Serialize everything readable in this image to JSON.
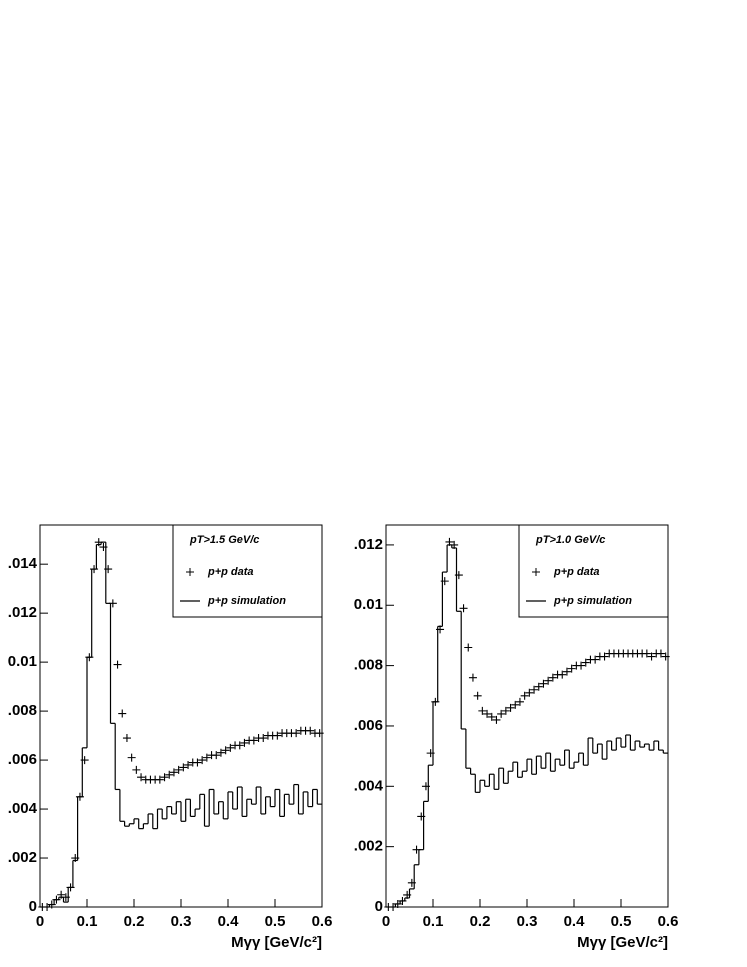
{
  "chart_data": [
    {
      "type": "histogram",
      "legend_title": "pT>1.5 GeV/c",
      "x_label": "Mγγ  [GeV/c²]",
      "bins": [
        0,
        0.01,
        0.02,
        0.03,
        0.04,
        0.05,
        0.06,
        0.07,
        0.08,
        0.09,
        0.1,
        0.11,
        0.12,
        0.13,
        0.14,
        0.15,
        0.16,
        0.17,
        0.18,
        0.19,
        0.2,
        0.21,
        0.22,
        0.23,
        0.24,
        0.25,
        0.26,
        0.27,
        0.28,
        0.29,
        0.3,
        0.31,
        0.32,
        0.33,
        0.34,
        0.35,
        0.36,
        0.37,
        0.38,
        0.39,
        0.4,
        0.41,
        0.42,
        0.43,
        0.44,
        0.45,
        0.46,
        0.47,
        0.48,
        0.49,
        0.5,
        0.51,
        0.52,
        0.53,
        0.54,
        0.55,
        0.56,
        0.57,
        0.58,
        0.59,
        0.6
      ],
      "series": [
        {
          "name": "p+p data",
          "style": "markers",
          "color": "#000000",
          "values": [
            0,
            0,
            0.0001,
            0.0003,
            0.0005,
            0.0004,
            0.0008,
            0.002,
            0.0045,
            0.006,
            0.0102,
            0.0138,
            0.0149,
            0.0147,
            0.0138,
            0.0124,
            0.0099,
            0.0079,
            0.0069,
            0.0061,
            0.0056,
            0.0053,
            0.0052,
            0.0052,
            0.0052,
            0.0052,
            0.0053,
            0.0054,
            0.0055,
            0.0056,
            0.0057,
            0.0058,
            0.0059,
            0.0059,
            0.006,
            0.0061,
            0.0062,
            0.0062,
            0.0063,
            0.0064,
            0.0065,
            0.0066,
            0.0066,
            0.0067,
            0.0068,
            0.0068,
            0.0069,
            0.0069,
            0.007,
            0.007,
            0.007,
            0.0071,
            0.0071,
            0.0071,
            0.0071,
            0.0072,
            0.0072,
            0.0072,
            0.0071,
            0.0071
          ]
        },
        {
          "name": "p+p simulation",
          "style": "step",
          "color": "#000000",
          "values": [
            0,
            0,
            0.0001,
            0.0003,
            0.0004,
            0.0002,
            0.0008,
            0.0019,
            0.0045,
            0.0065,
            0.0102,
            0.0138,
            0.0148,
            0.0149,
            0.0124,
            0.0075,
            0.0048,
            0.0035,
            0.0033,
            0.0034,
            0.0036,
            0.0032,
            0.0034,
            0.0038,
            0.0032,
            0.004,
            0.0036,
            0.0041,
            0.0038,
            0.0043,
            0.0035,
            0.0044,
            0.0037,
            0.004,
            0.0046,
            0.0033,
            0.0048,
            0.0038,
            0.0043,
            0.0036,
            0.0047,
            0.004,
            0.0049,
            0.0037,
            0.0044,
            0.0042,
            0.0049,
            0.0038,
            0.0045,
            0.0041,
            0.0048,
            0.0037,
            0.0046,
            0.0042,
            0.005,
            0.0038,
            0.0047,
            0.0041,
            0.0048,
            0.0042
          ]
        }
      ],
      "xlim": [
        0,
        0.6
      ],
      "xticks": [
        0,
        0.1,
        0.2,
        0.3,
        0.4,
        0.5,
        0.6
      ],
      "ylim": [
        0,
        0.0156
      ],
      "yticks": [
        {
          "value": 0,
          "label": "0"
        },
        {
          "value": 0.002,
          "label": ".002"
        },
        {
          "value": 0.004,
          "label": ".004"
        },
        {
          "value": 0.006,
          "label": ".006"
        },
        {
          "value": 0.008,
          "label": ".008"
        },
        {
          "value": 0.01,
          "label": "0.01"
        },
        {
          "value": 0.012,
          "label": ".012"
        },
        {
          "value": 0.014,
          "label": ".014"
        }
      ]
    },
    {
      "type": "histogram",
      "legend_title": "pT>1.0 GeV/c",
      "x_label": "Mγγ  [GeV/c²]",
      "bins": [
        0,
        0.01,
        0.02,
        0.03,
        0.04,
        0.05,
        0.06,
        0.07,
        0.08,
        0.09,
        0.1,
        0.11,
        0.12,
        0.13,
        0.14,
        0.15,
        0.16,
        0.17,
        0.18,
        0.19,
        0.2,
        0.21,
        0.22,
        0.23,
        0.24,
        0.25,
        0.26,
        0.27,
        0.28,
        0.29,
        0.3,
        0.31,
        0.32,
        0.33,
        0.34,
        0.35,
        0.36,
        0.37,
        0.38,
        0.39,
        0.4,
        0.41,
        0.42,
        0.43,
        0.44,
        0.45,
        0.46,
        0.47,
        0.48,
        0.49,
        0.5,
        0.51,
        0.52,
        0.53,
        0.54,
        0.55,
        0.56,
        0.57,
        0.58,
        0.59,
        0.6
      ],
      "series": [
        {
          "name": "p+p data",
          "style": "markers",
          "color": "#000000",
          "values": [
            0,
            0,
            0.0001,
            0.0002,
            0.0004,
            0.0008,
            0.0019,
            0.003,
            0.004,
            0.0051,
            0.0068,
            0.0092,
            0.0108,
            0.0121,
            0.012,
            0.011,
            0.0099,
            0.0086,
            0.0076,
            0.007,
            0.0065,
            0.0064,
            0.0063,
            0.0062,
            0.0064,
            0.0065,
            0.0066,
            0.0067,
            0.0068,
            0.007,
            0.0071,
            0.0072,
            0.0073,
            0.0074,
            0.0075,
            0.0076,
            0.0077,
            0.0077,
            0.0078,
            0.0079,
            0.008,
            0.008,
            0.0081,
            0.0082,
            0.0082,
            0.0083,
            0.0083,
            0.0084,
            0.0084,
            0.0084,
            0.0084,
            0.0084,
            0.0084,
            0.0084,
            0.0084,
            0.0084,
            0.0083,
            0.0084,
            0.0084,
            0.0083
          ]
        },
        {
          "name": "p+p simulation",
          "style": "step",
          "color": "#000000",
          "values": [
            0,
            0,
            0.0001,
            0.0002,
            0.0003,
            0.0006,
            0.0014,
            0.0019,
            0.0035,
            0.0047,
            0.0068,
            0.0093,
            0.0111,
            0.012,
            0.0119,
            0.0098,
            0.0059,
            0.0046,
            0.0044,
            0.0038,
            0.0042,
            0.004,
            0.0044,
            0.0039,
            0.0046,
            0.0041,
            0.0045,
            0.0048,
            0.0043,
            0.0045,
            0.0049,
            0.0044,
            0.005,
            0.0046,
            0.0051,
            0.0045,
            0.0049,
            0.0047,
            0.0052,
            0.0046,
            0.0048,
            0.0051,
            0.0047,
            0.0056,
            0.0051,
            0.0054,
            0.0049,
            0.0055,
            0.0052,
            0.0056,
            0.0053,
            0.0057,
            0.0052,
            0.0055,
            0.0053,
            0.0054,
            0.0052,
            0.0055,
            0.0052,
            0.0051
          ]
        }
      ],
      "xlim": [
        0,
        0.6
      ],
      "xticks": [
        0,
        0.1,
        0.2,
        0.3,
        0.4,
        0.5,
        0.6
      ],
      "ylim": [
        0,
        0.01266
      ],
      "yticks": [
        {
          "value": 0,
          "label": "0"
        },
        {
          "value": 0.002,
          "label": ".002"
        },
        {
          "value": 0.004,
          "label": ".004"
        },
        {
          "value": 0.006,
          "label": ".006"
        },
        {
          "value": 0.008,
          "label": ".008"
        },
        {
          "value": 0.01,
          "label": "0.01"
        },
        {
          "value": 0.012,
          "label": ".012"
        }
      ]
    }
  ]
}
